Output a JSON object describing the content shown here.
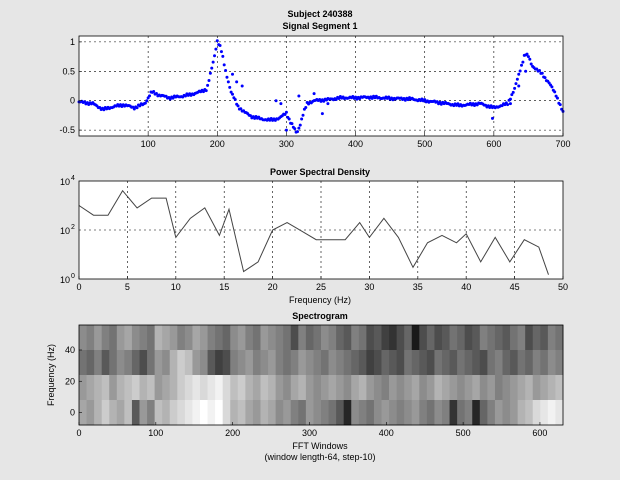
{
  "figure": {
    "title_line1": "Subject 240388",
    "title_line2": "Signal Segment 1"
  },
  "colors": {
    "background": "#e6e6e6",
    "axes_background": "#ffffff",
    "signal_points": "#0000ff",
    "psd_line": "#444444"
  },
  "chart_data": [
    {
      "type": "scatter",
      "title": "",
      "xlabel": "",
      "ylabel": "",
      "xlim": [
        0,
        700
      ],
      "ylim": [
        -0.6,
        1.1
      ],
      "xticks": [
        "100",
        "200",
        "300",
        "400",
        "500",
        "600",
        "700"
      ],
      "yticks": [
        "-0.5",
        "0",
        "0.5",
        "1"
      ],
      "grid": true,
      "marker": "dot",
      "color": "#0000ff",
      "approx_curve": {
        "x": [
          0,
          20,
          35,
          50,
          65,
          80,
          95,
          105,
          115,
          130,
          145,
          160,
          175,
          185,
          195,
          200,
          205,
          212,
          220,
          230,
          240,
          250,
          260,
          275,
          290,
          300,
          305,
          310,
          315,
          320,
          325,
          330,
          340,
          360,
          380,
          400,
          420,
          450,
          480,
          500,
          520,
          550,
          580,
          600,
          620,
          630,
          640,
          645,
          650,
          655,
          660,
          670,
          680,
          690,
          700
        ],
        "y": [
          -0.02,
          -0.05,
          -0.15,
          -0.1,
          -0.07,
          -0.12,
          -0.05,
          0.15,
          0.1,
          0.05,
          0.07,
          0.1,
          0.15,
          0.2,
          0.7,
          1.02,
          0.9,
          0.5,
          0.15,
          -0.1,
          -0.2,
          -0.27,
          -0.3,
          -0.33,
          -0.3,
          -0.2,
          -0.35,
          -0.45,
          -0.55,
          -0.4,
          -0.2,
          -0.05,
          0.0,
          0.02,
          0.05,
          0.05,
          0.06,
          0.04,
          0.03,
          0.0,
          -0.03,
          -0.08,
          -0.05,
          -0.12,
          -0.05,
          0.2,
          0.6,
          0.8,
          0.75,
          0.6,
          0.55,
          0.45,
          0.3,
          0.1,
          -0.2
        ]
      },
      "outliers": [
        {
          "x": 222,
          "y": 0.45
        },
        {
          "x": 228,
          "y": 0.32
        },
        {
          "x": 236,
          "y": 0.25
        },
        {
          "x": 285,
          "y": 0.0
        },
        {
          "x": 292,
          "y": -0.05
        },
        {
          "x": 300,
          "y": -0.5
        },
        {
          "x": 318,
          "y": 0.08
        },
        {
          "x": 340,
          "y": 0.12
        },
        {
          "x": 352,
          "y": -0.22
        },
        {
          "x": 360,
          "y": -0.05
        },
        {
          "x": 598,
          "y": -0.3
        },
        {
          "x": 624,
          "y": -0.05
        },
        {
          "x": 636,
          "y": 0.25
        },
        {
          "x": 646,
          "y": 0.5
        }
      ]
    },
    {
      "type": "line",
      "title": "Power Spectral Density",
      "xlabel": "Frequency (Hz)",
      "ylabel": "",
      "yscale": "log",
      "xlim": [
        0,
        50
      ],
      "ylim": [
        1,
        10000
      ],
      "xticks": [
        "0",
        "5",
        "10",
        "15",
        "20",
        "25",
        "30",
        "35",
        "40",
        "45",
        "50"
      ],
      "yticks": [
        {
          "base": "10",
          "exp": "0"
        },
        {
          "base": "10",
          "exp": "2"
        },
        {
          "base": "10",
          "exp": "4"
        }
      ],
      "grid": true,
      "color": "#444444",
      "x": [
        0,
        1.5,
        3,
        4.5,
        6,
        7.5,
        9,
        10,
        11.5,
        13,
        14.5,
        15.5,
        17,
        18.5,
        20,
        21.5,
        23,
        24.5,
        26,
        27.5,
        29,
        30,
        31.5,
        33,
        34.5,
        36,
        37.5,
        39,
        40,
        41.5,
        43,
        44.5,
        46,
        47.5,
        48.5
      ],
      "y": [
        1000,
        400,
        400,
        4000,
        800,
        2000,
        2000,
        50,
        300,
        800,
        60,
        700,
        2,
        5,
        100,
        200,
        90,
        40,
        40,
        40,
        200,
        50,
        300,
        50,
        3,
        30,
        60,
        30,
        70,
        5,
        50,
        5,
        40,
        20,
        1.5
      ]
    },
    {
      "type": "heatmap",
      "title": "Spectrogram",
      "xlabel": "FFT Windows",
      "xlabel_line2": "(window length-64, step-10)",
      "ylabel": "Frequency (Hz)",
      "xlim": [
        0,
        630
      ],
      "ylim": [
        -8,
        56
      ],
      "xticks": [
        "0",
        "100",
        "200",
        "300",
        "400",
        "500",
        "600"
      ],
      "yticks": [
        "0",
        "20",
        "40"
      ],
      "colormap": "gray",
      "rows_top_to_bottom": [
        [
          0.55,
          0.5,
          0.6,
          0.5,
          0.45,
          0.6,
          0.65,
          0.55,
          0.5,
          0.45,
          0.7,
          0.65,
          0.6,
          0.5,
          0.55,
          0.65,
          0.6,
          0.5,
          0.45,
          0.4,
          0.55,
          0.6,
          0.5,
          0.45,
          0.6,
          0.55,
          0.5,
          0.45,
          0.3,
          0.5,
          0.4,
          0.45,
          0.55,
          0.5,
          0.4,
          0.35,
          0.5,
          0.45,
          0.3,
          0.35,
          0.25,
          0.2,
          0.3,
          0.4,
          0.1,
          0.3,
          0.4,
          0.3,
          0.35,
          0.45,
          0.4,
          0.3,
          0.35,
          0.5,
          0.45,
          0.4,
          0.35,
          0.45,
          0.5,
          0.3,
          0.4,
          0.35,
          0.5,
          0.45
        ],
        [
          0.45,
          0.4,
          0.5,
          0.35,
          0.45,
          0.55,
          0.5,
          0.4,
          0.3,
          0.45,
          0.6,
          0.55,
          0.7,
          0.8,
          0.75,
          0.6,
          0.55,
          0.35,
          0.25,
          0.3,
          0.5,
          0.55,
          0.6,
          0.5,
          0.55,
          0.6,
          0.5,
          0.45,
          0.5,
          0.6,
          0.55,
          0.5,
          0.45,
          0.55,
          0.5,
          0.45,
          0.4,
          0.35,
          0.25,
          0.3,
          0.4,
          0.35,
          0.3,
          0.45,
          0.4,
          0.35,
          0.3,
          0.45,
          0.4,
          0.35,
          0.45,
          0.4,
          0.35,
          0.3,
          0.45,
          0.5,
          0.4,
          0.35,
          0.45,
          0.4,
          0.5,
          0.45,
          0.55,
          0.5
        ],
        [
          0.6,
          0.65,
          0.7,
          0.75,
          0.6,
          0.7,
          0.75,
          0.8,
          0.7,
          0.75,
          0.6,
          0.65,
          0.7,
          0.8,
          0.85,
          0.9,
          0.85,
          0.9,
          0.95,
          0.85,
          0.75,
          0.8,
          0.7,
          0.65,
          0.75,
          0.7,
          0.6,
          0.55,
          0.65,
          0.7,
          0.6,
          0.55,
          0.6,
          0.65,
          0.6,
          0.55,
          0.65,
          0.7,
          0.6,
          0.55,
          0.5,
          0.6,
          0.55,
          0.6,
          0.65,
          0.55,
          0.6,
          0.7,
          0.65,
          0.6,
          0.55,
          0.6,
          0.65,
          0.55,
          0.6,
          0.5,
          0.55,
          0.6,
          0.65,
          0.7,
          0.6,
          0.65,
          0.7,
          0.75
        ],
        [
          0.65,
          0.6,
          0.7,
          0.8,
          0.7,
          0.65,
          0.75,
          0.35,
          0.6,
          0.5,
          0.75,
          0.7,
          0.8,
          0.85,
          0.9,
          0.95,
          1.0,
          0.95,
          1.0,
          0.85,
          0.7,
          0.75,
          0.65,
          0.6,
          0.7,
          0.65,
          0.55,
          0.6,
          0.5,
          0.45,
          0.6,
          0.55,
          0.5,
          0.45,
          0.35,
          0.15,
          0.55,
          0.5,
          0.45,
          0.55,
          0.6,
          0.55,
          0.5,
          0.55,
          0.6,
          0.5,
          0.45,
          0.55,
          0.5,
          0.2,
          0.45,
          0.5,
          0.15,
          0.4,
          0.5,
          0.6,
          0.55,
          0.6,
          0.7,
          0.75,
          0.85,
          0.9,
          0.95,
          0.9
        ]
      ]
    }
  ]
}
